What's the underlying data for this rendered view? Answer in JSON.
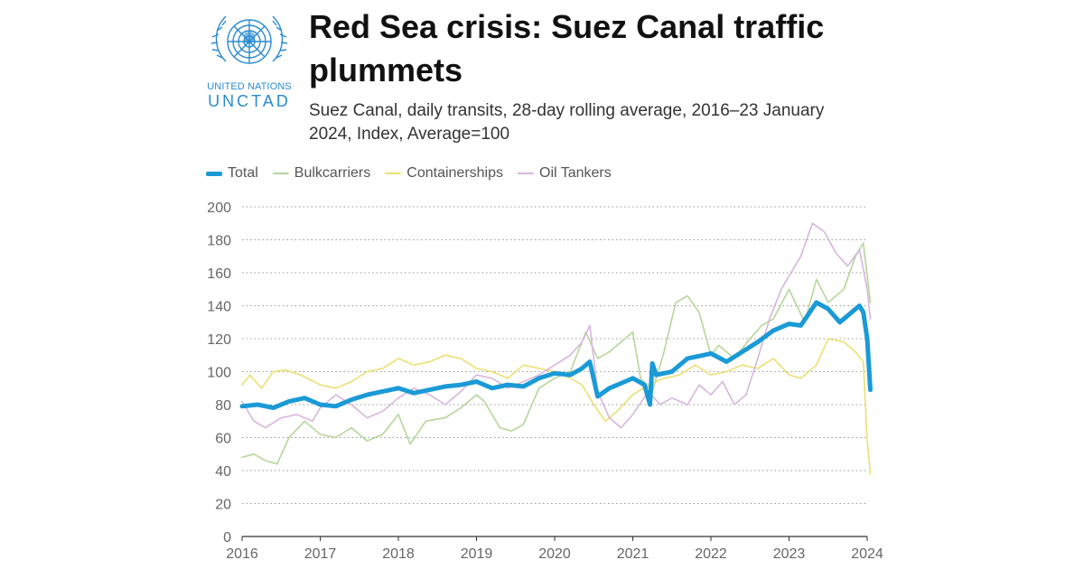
{
  "logo": {
    "line1": "UNITED NATIONS",
    "line2": "UNCTAD",
    "color": "#2b8bd0"
  },
  "title": "Red Sea crisis: Suez Canal traffic plummets",
  "subtitle": "Suez Canal, daily transits, 28-day rolling average, 2016–23 January 2024, Index, Average=100",
  "chart_data": {
    "type": "line",
    "xlim": [
      2016.0,
      2024.0
    ],
    "ylim": [
      0,
      200
    ],
    "x_ticks": [
      2016,
      2017,
      2018,
      2019,
      2020,
      2021,
      2022,
      2023,
      2024
    ],
    "y_ticks": [
      0,
      20,
      40,
      60,
      80,
      100,
      120,
      140,
      160,
      180,
      200
    ],
    "grid": "horizontal-dotted",
    "legend": "top-left",
    "series": [
      {
        "name": "Total",
        "color": "#1a9ad6",
        "x": [
          2016.0,
          2016.2,
          2016.4,
          2016.6,
          2016.8,
          2017.0,
          2017.2,
          2017.4,
          2017.6,
          2017.8,
          2018.0,
          2018.2,
          2018.4,
          2018.6,
          2018.8,
          2019.0,
          2019.2,
          2019.4,
          2019.6,
          2019.8,
          2020.0,
          2020.2,
          2020.35,
          2020.45,
          2020.55,
          2020.7,
          2020.9,
          2021.0,
          2021.15,
          2021.22,
          2021.25,
          2021.3,
          2021.5,
          2021.7,
          2021.9,
          2022.0,
          2022.2,
          2022.4,
          2022.6,
          2022.8,
          2023.0,
          2023.15,
          2023.35,
          2023.5,
          2023.65,
          2023.8,
          2023.9,
          2023.95,
          2024.0,
          2024.04
        ],
        "y": [
          79,
          80,
          78,
          82,
          84,
          80,
          79,
          83,
          86,
          88,
          90,
          87,
          89,
          91,
          92,
          94,
          90,
          92,
          91,
          96,
          99,
          98,
          102,
          106,
          85,
          90,
          94,
          96,
          92,
          80,
          105,
          98,
          100,
          108,
          110,
          111,
          106,
          112,
          118,
          125,
          129,
          128,
          142,
          138,
          130,
          136,
          140,
          136,
          120,
          89
        ]
      },
      {
        "name": "Bulkcarriers",
        "color": "#b5d69a",
        "x": [
          2016.0,
          2016.15,
          2016.3,
          2016.45,
          2016.6,
          2016.8,
          2017.0,
          2017.2,
          2017.4,
          2017.6,
          2017.8,
          2018.0,
          2018.15,
          2018.35,
          2018.6,
          2018.8,
          2019.0,
          2019.1,
          2019.3,
          2019.45,
          2019.6,
          2019.8,
          2020.0,
          2020.2,
          2020.4,
          2020.55,
          2020.7,
          2020.85,
          2021.0,
          2021.1,
          2021.25,
          2021.4,
          2021.55,
          2021.7,
          2021.85,
          2022.0,
          2022.1,
          2022.3,
          2022.5,
          2022.65,
          2022.8,
          2023.0,
          2023.2,
          2023.35,
          2023.5,
          2023.7,
          2023.85,
          2023.95,
          2024.04
        ],
        "y": [
          48,
          50,
          46,
          44,
          60,
          70,
          62,
          60,
          66,
          58,
          62,
          74,
          56,
          70,
          72,
          78,
          86,
          82,
          66,
          64,
          68,
          90,
          96,
          100,
          124,
          108,
          112,
          118,
          124,
          96,
          88,
          112,
          142,
          146,
          136,
          110,
          116,
          108,
          120,
          128,
          132,
          150,
          130,
          156,
          142,
          150,
          170,
          178,
          142
        ]
      },
      {
        "name": "Containerships",
        "color": "#ecdf72",
        "x": [
          2016.0,
          2016.1,
          2016.25,
          2016.4,
          2016.55,
          2016.75,
          2017.0,
          2017.2,
          2017.4,
          2017.6,
          2017.8,
          2018.0,
          2018.2,
          2018.4,
          2018.6,
          2018.8,
          2019.0,
          2019.2,
          2019.4,
          2019.6,
          2019.8,
          2020.0,
          2020.2,
          2020.35,
          2020.5,
          2020.65,
          2020.8,
          2021.0,
          2021.2,
          2021.4,
          2021.6,
          2021.8,
          2022.0,
          2022.2,
          2022.4,
          2022.6,
          2022.8,
          2023.0,
          2023.15,
          2023.35,
          2023.5,
          2023.7,
          2023.85,
          2023.95,
          2024.0,
          2024.04
        ],
        "y": [
          92,
          98,
          90,
          100,
          101,
          98,
          92,
          90,
          94,
          100,
          102,
          108,
          104,
          106,
          110,
          108,
          102,
          100,
          96,
          104,
          102,
          100,
          96,
          92,
          80,
          70,
          76,
          86,
          92,
          96,
          98,
          104,
          98,
          100,
          104,
          102,
          108,
          98,
          96,
          104,
          120,
          118,
          112,
          106,
          58,
          38
        ]
      },
      {
        "name": "Oil Tankers",
        "color": "#d7b6dc",
        "x": [
          2016.0,
          2016.15,
          2016.3,
          2016.5,
          2016.7,
          2016.9,
          2017.0,
          2017.2,
          2017.4,
          2017.6,
          2017.8,
          2018.0,
          2018.2,
          2018.4,
          2018.6,
          2018.8,
          2019.0,
          2019.2,
          2019.4,
          2019.6,
          2019.8,
          2020.0,
          2020.2,
          2020.35,
          2020.45,
          2020.55,
          2020.7,
          2020.85,
          2021.0,
          2021.2,
          2021.35,
          2021.5,
          2021.7,
          2021.85,
          2022.0,
          2022.15,
          2022.3,
          2022.45,
          2022.6,
          2022.75,
          2022.9,
          2023.0,
          2023.15,
          2023.3,
          2023.45,
          2023.6,
          2023.75,
          2023.9,
          2024.0,
          2024.04
        ],
        "y": [
          82,
          70,
          66,
          72,
          74,
          70,
          78,
          86,
          80,
          72,
          76,
          84,
          90,
          86,
          80,
          88,
          98,
          96,
          90,
          94,
          98,
          104,
          110,
          118,
          128,
          88,
          72,
          66,
          74,
          88,
          80,
          84,
          80,
          92,
          86,
          94,
          80,
          86,
          108,
          132,
          150,
          158,
          170,
          190,
          185,
          172,
          164,
          174,
          150,
          132
        ]
      }
    ]
  }
}
